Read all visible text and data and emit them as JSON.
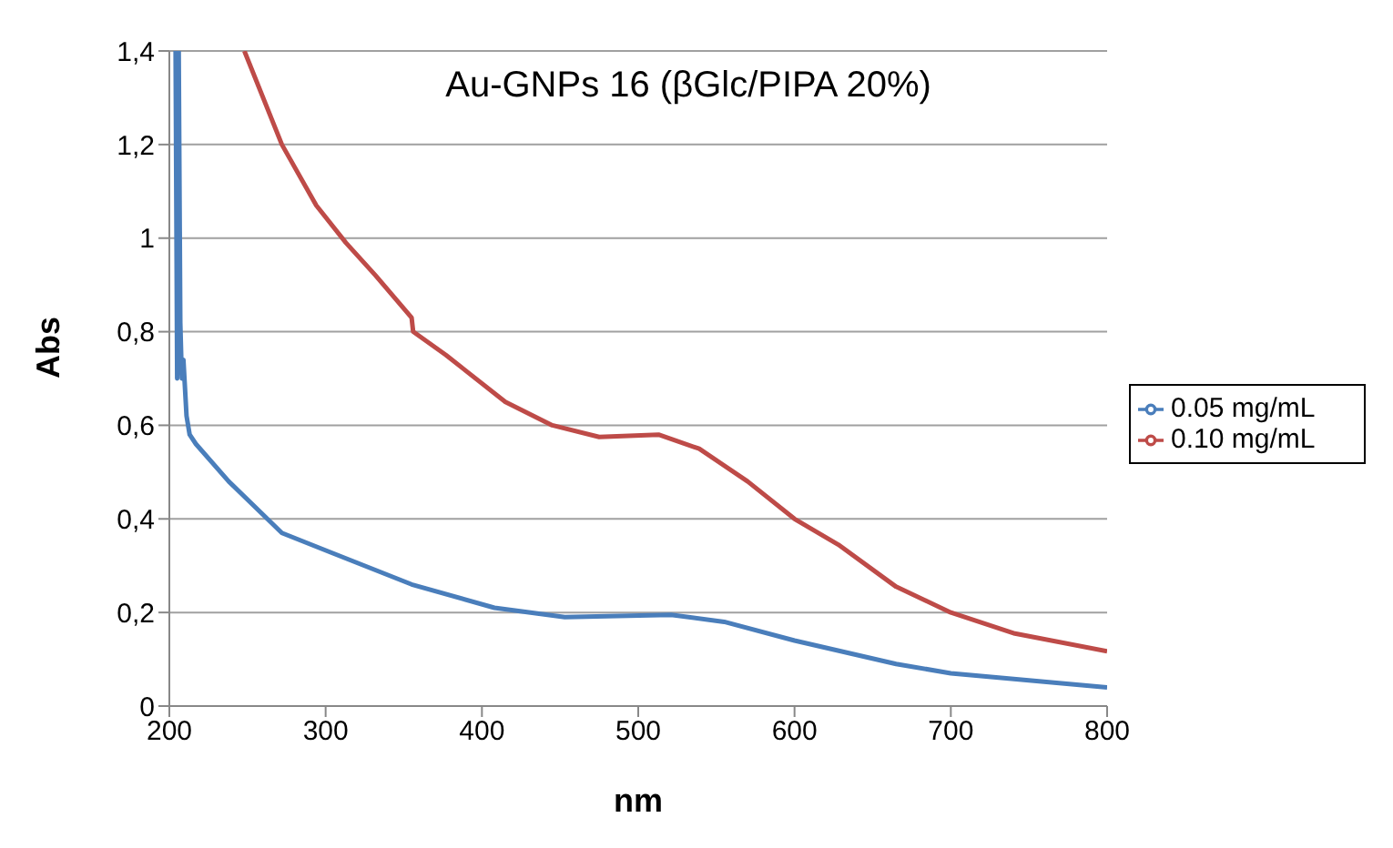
{
  "chart_data": {
    "type": "line",
    "title": "Au-GNPs 16 (βGlc/PIPA 20%)",
    "xlabel": "nm",
    "ylabel": "Abs",
    "xlim": [
      200,
      800
    ],
    "xticks": [
      200,
      300,
      400,
      500,
      600,
      700,
      800
    ],
    "ylim": [
      0,
      1.4
    ],
    "yticks": [
      0,
      {
        "value": 0.2,
        "label": "0,2"
      },
      {
        "value": 0.4,
        "label": "0,4"
      },
      {
        "value": 0.6,
        "label": "0,6"
      },
      {
        "value": 0.8,
        "label": "0,8"
      },
      1,
      {
        "value": 1.2,
        "label": "1,2"
      },
      {
        "value": 1.4,
        "label": "1,4"
      }
    ],
    "grid": "y",
    "legend": "right",
    "marker": "none",
    "line_style": "solid",
    "series": [
      {
        "name": "0.05 mg/mL",
        "color": "#4a7ebb",
        "x": [
          204,
          205,
          206,
          207,
          208,
          209,
          211,
          213,
          217,
          238,
          272,
          302,
          355,
          408,
          453,
          521,
          555,
          600,
          665,
          700,
          800
        ],
        "values": [
          1.4,
          0.7,
          1.4,
          0.82,
          0.7,
          0.74,
          0.62,
          0.58,
          0.56,
          0.48,
          0.37,
          0.33,
          0.26,
          0.21,
          0.19,
          0.195,
          0.18,
          0.14,
          0.09,
          0.07,
          0.04
        ]
      },
      {
        "name": "0.10 mg/mL",
        "color": "#be4b48",
        "x": [
          248,
          272,
          294,
          313,
          332,
          355,
          356,
          377,
          415,
          445,
          475,
          513,
          539,
          570,
          600,
          628,
          665,
          700,
          741,
          800
        ],
        "values": [
          1.4,
          1.2,
          1.07,
          0.99,
          0.92,
          0.83,
          0.8,
          0.75,
          0.65,
          0.6,
          0.575,
          0.58,
          0.55,
          0.48,
          0.4,
          0.345,
          0.255,
          0.2,
          0.155,
          0.117
        ]
      }
    ]
  }
}
